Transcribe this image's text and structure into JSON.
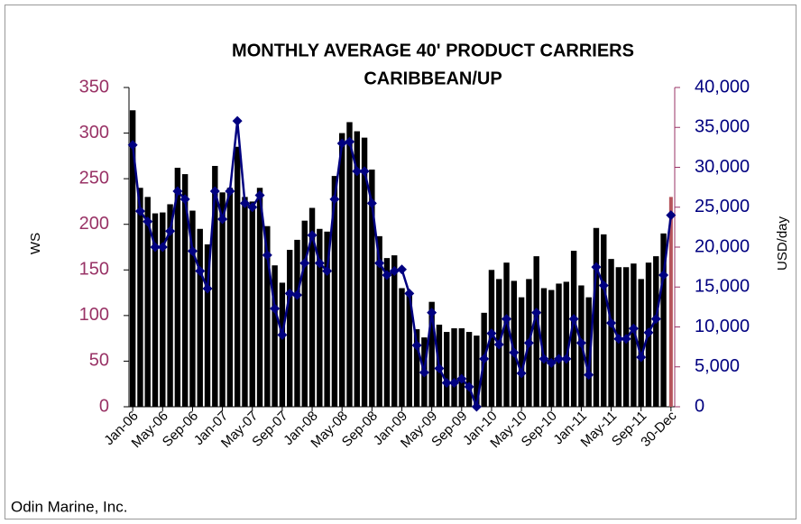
{
  "chart_data": {
    "type": "bar",
    "title": "MONTHLY AVERAGE 40' PRODUCT CARRIERS",
    "subtitle": "CARIBBEAN/UP",
    "y_label": "WS",
    "y2_label": "USD/day",
    "source": "Odin Marine, Inc.",
    "categories": [
      "Jan-06",
      null,
      null,
      null,
      "May-06",
      null,
      null,
      null,
      "Sep-06",
      null,
      null,
      null,
      "Jan-07",
      null,
      null,
      null,
      "May-07",
      null,
      null,
      null,
      "Sep-07",
      null,
      null,
      null,
      "Jan-08",
      null,
      null,
      null,
      "May-08",
      null,
      null,
      null,
      "Sep-08",
      null,
      null,
      null,
      "Jan-09",
      null,
      null,
      null,
      "May-09",
      null,
      null,
      null,
      "Sep-09",
      null,
      null,
      null,
      "Jan-10",
      null,
      null,
      null,
      "May-10",
      null,
      null,
      null,
      "Sep-10",
      null,
      null,
      null,
      "Jan-11",
      null,
      null,
      null,
      "May-11",
      null,
      null,
      null,
      "Sep-11",
      null,
      null,
      null,
      "30-Dec"
    ],
    "series": [
      {
        "type": "bar",
        "color": "#000000",
        "last_color": "#b5545c",
        "values": [
          325,
          240,
          230,
          212,
          213,
          222,
          262,
          255,
          215,
          195,
          178,
          264,
          235,
          240,
          285,
          230,
          225,
          240,
          198,
          155,
          136,
          172,
          183,
          204,
          218,
          195,
          192,
          253,
          300,
          312,
          302,
          295,
          260,
          187,
          163,
          166,
          130,
          125,
          85,
          76,
          115,
          90,
          82,
          86,
          86,
          82,
          78,
          103,
          150,
          140,
          158,
          138,
          120,
          140,
          165,
          130,
          128,
          135,
          137,
          171,
          133,
          120,
          196,
          189,
          162,
          153,
          153,
          157,
          140,
          158,
          165,
          190,
          230
        ]
      },
      {
        "type": "line",
        "axis": "y2",
        "color": "#000080",
        "values": [
          32800,
          24500,
          23200,
          20000,
          20000,
          22000,
          27000,
          26000,
          19500,
          17000,
          14800,
          27000,
          23500,
          27000,
          35800,
          25500,
          25000,
          26500,
          19000,
          12300,
          9000,
          14200,
          14000,
          18000,
          21500,
          18000,
          17000,
          26000,
          33000,
          33200,
          29500,
          29500,
          25500,
          18000,
          16500,
          17000,
          17200,
          14200,
          7700,
          4300,
          11800,
          4800,
          3000,
          3000,
          3500,
          2500,
          0,
          6000,
          9200,
          7800,
          11000,
          6800,
          4200,
          8000,
          11800,
          6000,
          5500,
          6000,
          6000,
          11000,
          8000,
          4000,
          17500,
          15200,
          10500,
          8500,
          8500,
          9800,
          6200,
          9300,
          11000,
          16500,
          24000
        ]
      }
    ],
    "ylim": [
      0,
      350
    ],
    "yticks": [
      0,
      50,
      100,
      150,
      200,
      250,
      300,
      350
    ],
    "y2lim": [
      0,
      40000
    ],
    "y2ticks": [
      0,
      {
        "value": 5000,
        "label": "5,000"
      },
      {
        "value": 10000,
        "label": "10,000"
      },
      {
        "value": 15000,
        "label": "15,000"
      },
      {
        "value": 20000,
        "label": "20,000"
      },
      {
        "value": 25000,
        "label": "25,000"
      },
      {
        "value": 30000,
        "label": "30,000"
      },
      {
        "value": 35000,
        "label": "35,000"
      },
      {
        "value": 40000,
        "label": "40,000"
      }
    ],
    "y_color": "#993366",
    "y2_color": "#000080",
    "grid": false
  }
}
